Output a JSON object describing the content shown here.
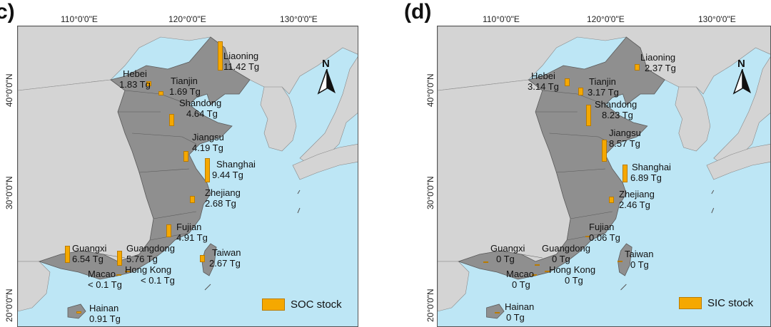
{
  "panels": [
    {
      "id": "c",
      "letter": "c)",
      "lon_labels": [
        "110°0'0\"E",
        "120°0'0\"E",
        "130°0'0\"E"
      ],
      "lat_labels": [
        "40°0'0\"N",
        "30°0'0\"N",
        "20°0'0\"N"
      ],
      "north": "N",
      "legend": "SOC stock",
      "provinces": {
        "liaoning": {
          "name": "Liaoning",
          "value": "11.42 Tg",
          "amount": 11.42
        },
        "hebei": {
          "name": "Hebei",
          "value": "1.83 Tg",
          "amount": 1.83
        },
        "tianjin": {
          "name": "Tianjin",
          "value": "1.69 Tg",
          "amount": 1.69
        },
        "shandong": {
          "name": "Shandong",
          "value": "4.64 Tg",
          "amount": 4.64
        },
        "jiangsu": {
          "name": "Jiangsu",
          "value": "4.19 Tg",
          "amount": 4.19
        },
        "shanghai": {
          "name": "Shanghai",
          "value": "9.44 Tg",
          "amount": 9.44
        },
        "zhejiang": {
          "name": "Zhejiang",
          "value": "2.68 Tg",
          "amount": 2.68
        },
        "fujian": {
          "name": "Fujian",
          "value": "4.91 Tg",
          "amount": 4.91
        },
        "guangxi": {
          "name": "Guangxi",
          "value": "6.54 Tg",
          "amount": 6.54
        },
        "guangdong": {
          "name": "Guangdong",
          "value": "5.76 Tg",
          "amount": 5.76
        },
        "taiwan": {
          "name": "Taiwan",
          "value": "2.67 Tg",
          "amount": 2.67
        },
        "macao": {
          "name": "Macao",
          "value": "< 0.1 Tg",
          "amount": 0.05
        },
        "hongkong": {
          "name": "Hong Kong",
          "value": "< 0.1 Tg",
          "amount": 0.05
        },
        "hainan": {
          "name": "Hainan",
          "value": "0.91 Tg",
          "amount": 0.91
        }
      }
    },
    {
      "id": "d",
      "letter": "(d)",
      "lon_labels": [
        "110°0'0\"E",
        "120°0'0\"E",
        "130°0'0\"E"
      ],
      "lat_labels": [
        "40°0'0\"N",
        "30°0'0\"N",
        "20°0'0\"N"
      ],
      "north": "N",
      "legend": "SIC stock",
      "provinces": {
        "liaoning": {
          "name": "Liaoning",
          "value": "2.37 Tg",
          "amount": 2.37
        },
        "hebei": {
          "name": "Hebei",
          "value": "3.14 Tg",
          "amount": 3.14
        },
        "tianjin": {
          "name": "Tianjin",
          "value": "3.17 Tg",
          "amount": 3.17
        },
        "shandong": {
          "name": "Shandong",
          "value": "8.23 Tg",
          "amount": 8.23
        },
        "jiangsu": {
          "name": "Jiangsu",
          "value": "8.57 Tg",
          "amount": 8.57
        },
        "shanghai": {
          "name": "Shanghai",
          "value": "6.89 Tg",
          "amount": 6.89
        },
        "zhejiang": {
          "name": "Zhejiang",
          "value": "2.46 Tg",
          "amount": 2.46
        },
        "fujian": {
          "name": "Fujian",
          "value": "0.06 Tg",
          "amount": 0.06
        },
        "guangxi": {
          "name": "Guangxi",
          "value": "0 Tg",
          "amount": 0
        },
        "guangdong": {
          "name": "Guangdong",
          "value": "0 Tg",
          "amount": 0
        },
        "taiwan": {
          "name": "Taiwan",
          "value": "0 Tg",
          "amount": 0
        },
        "macao": {
          "name": "Macao",
          "value": "0 Tg",
          "amount": 0
        },
        "hongkong": {
          "name": "Hong Kong",
          "value": "0 Tg",
          "amount": 0
        },
        "hainan": {
          "name": "Hainan",
          "value": "0 Tg",
          "amount": 0
        }
      }
    }
  ],
  "colors": {
    "sea": "#bde6f5",
    "land_other": "#d4d4d4",
    "coastal_province": "#8f8f8f",
    "bar": "#f5a800"
  }
}
